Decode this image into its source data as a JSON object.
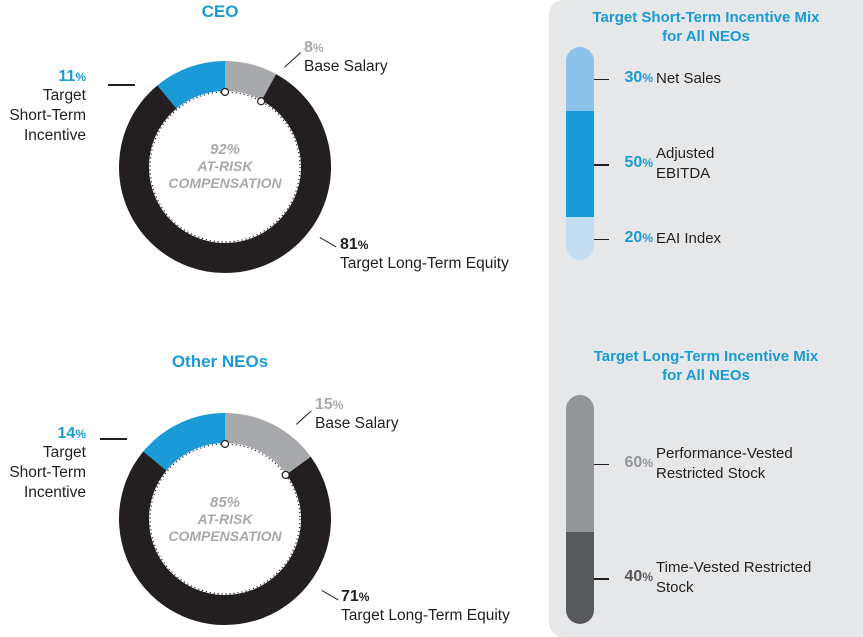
{
  "chart_data": [
    {
      "type": "pie",
      "title": "CEO",
      "center_value": "92%",
      "center_label_1": "AT-RISK",
      "center_label_2": "COMPENSATION",
      "slices": [
        {
          "label": "Base Salary",
          "value": 8,
          "color": "#a7a9ac"
        },
        {
          "label": "Target Long-Term Equity",
          "value": 81,
          "color": "#231f20"
        },
        {
          "label": "Target Short-Term Incentive",
          "value": 11,
          "color": "#1a9ad6"
        }
      ],
      "labels": {
        "base": {
          "num": "8",
          "pct": "%",
          "text": "Base Salary"
        },
        "sti": {
          "num": "11",
          "pct": "%",
          "line1": "Target",
          "line2": "Short-Term",
          "line3": "Incentive"
        },
        "lte": {
          "num": "81",
          "pct": "%",
          "text": "Target Long-Term Equity"
        }
      }
    },
    {
      "type": "pie",
      "title": "Other NEOs",
      "center_value": "85%",
      "center_label_1": "AT-RISK",
      "center_label_2": "COMPENSATION",
      "slices": [
        {
          "label": "Base Salary",
          "value": 15,
          "color": "#a7a9ac"
        },
        {
          "label": "Target Long-Term Equity",
          "value": 71,
          "color": "#231f20"
        },
        {
          "label": "Target Short-Term Incentive",
          "value": 14,
          "color": "#1a9ad6"
        }
      ],
      "labels": {
        "base": {
          "num": "15",
          "pct": "%",
          "text": "Base Salary"
        },
        "sti": {
          "num": "14",
          "pct": "%",
          "line1": "Target",
          "line2": "Short-Term",
          "line3": "Incentive"
        },
        "lte": {
          "num": "71",
          "pct": "%",
          "text": "Target Long-Term Equity"
        }
      }
    },
    {
      "type": "bar",
      "orientation": "vertical-stacked",
      "title_line1": "Target Short-Term Incentive Mix",
      "title_line2": "for All NEOs",
      "segments": [
        {
          "num": "30",
          "pct": "%",
          "line1": "Net Sales",
          "line2": "",
          "value": 30,
          "color": "#8cc3ea"
        },
        {
          "num": "50",
          "pct": "%",
          "line1": "Adjusted",
          "line2": "EBITDA",
          "value": 50,
          "color": "#1a9ad6"
        },
        {
          "num": "20",
          "pct": "%",
          "line1": "EAI Index",
          "line2": "",
          "value": 20,
          "color": "#c4def3"
        }
      ]
    },
    {
      "type": "bar",
      "orientation": "vertical-stacked",
      "title_line1": "Target Long-Term Incentive Mix",
      "title_line2": "for All NEOs",
      "segments": [
        {
          "num": "60",
          "pct": "%",
          "line1": "Performance-Vested",
          "line2": "Restricted Stock",
          "value": 60,
          "color": "#939598"
        },
        {
          "num": "40",
          "pct": "%",
          "line1": "Time-Vested Restricted",
          "line2": "Stock",
          "value": 40,
          "color": "#58595b"
        }
      ]
    }
  ]
}
